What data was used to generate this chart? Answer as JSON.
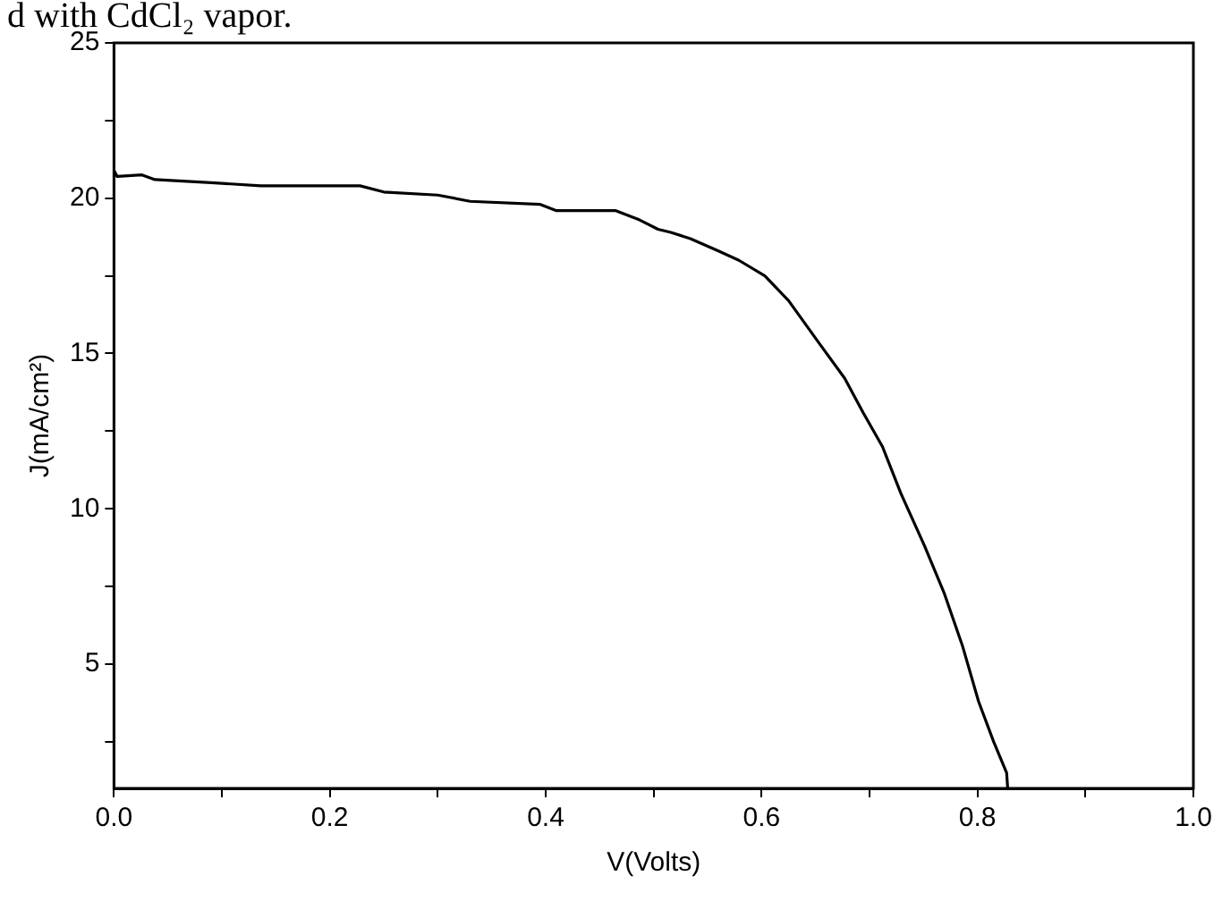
{
  "chart_data": {
    "type": "line",
    "xlabel": "V(Volts)",
    "ylabel": "J(mA/cm²)",
    "annotations": [
      "d with CdCl₂ vapor."
    ],
    "x": [
      0,
      0.003,
      0.026,
      0.038,
      0.09,
      0.136,
      0.228,
      0.25,
      0.3,
      0.33,
      0.395,
      0.41,
      0.465,
      0.487,
      0.504,
      0.516,
      0.534,
      0.56,
      0.579,
      0.603,
      0.625,
      0.654,
      0.677,
      0.694,
      0.712,
      0.729,
      0.751,
      0.769,
      0.786,
      0.801,
      0.815,
      0.827,
      0.828
    ],
    "series": [
      {
        "color": "#000000",
        "values": [
          20.9,
          20.7,
          20.75,
          20.6,
          20.5,
          20.4,
          20.4,
          20.2,
          20.1,
          19.9,
          19.8,
          19.6,
          19.6,
          19.3,
          19.0,
          18.9,
          18.7,
          18.3,
          18.0,
          17.5,
          16.7,
          15.3,
          14.2,
          13.1,
          12.0,
          10.5,
          8.8,
          7.3,
          5.6,
          3.8,
          2.5,
          1.5,
          1.0
        ]
      }
    ],
    "xlim": [
      0,
      1
    ],
    "ylim": [
      1,
      25
    ],
    "xticks": [
      {
        "value": 0,
        "label": "0.0"
      },
      {
        "value": 0.1,
        "label": null
      },
      {
        "value": 0.2,
        "label": "0.2"
      },
      {
        "value": 0.3,
        "label": null
      },
      {
        "value": 0.4,
        "label": "0.4"
      },
      {
        "value": 0.5,
        "label": null
      },
      {
        "value": 0.6,
        "label": "0.6"
      },
      {
        "value": 0.7,
        "label": null
      },
      {
        "value": 0.8,
        "label": "0.8"
      },
      {
        "value": 0.9,
        "label": null
      },
      {
        "value": 1,
        "label": "1.0"
      }
    ],
    "yticks": [
      {
        "value": 2.5,
        "label": null
      },
      5,
      {
        "value": 7.5,
        "label": null
      },
      10,
      {
        "value": 12.5,
        "label": null
      },
      15,
      {
        "value": 17.5,
        "label": null
      },
      20,
      {
        "value": 22.5,
        "label": null
      },
      25
    ],
    "grid": false,
    "legend": false,
    "marker": "none",
    "line_style": "solid"
  }
}
